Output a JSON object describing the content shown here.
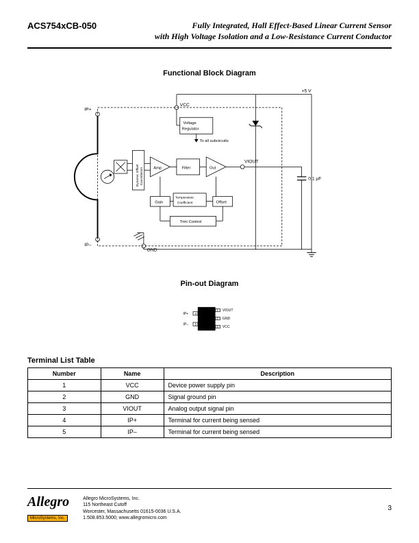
{
  "header": {
    "part_number": "ACS754xCB-050",
    "title_line1": "Fully Integrated, Hall Effect-Based Linear Current Sensor",
    "title_line2": "with High Voltage Isolation and a Low-Resistance Current Conductor"
  },
  "sections": {
    "block_diagram_title": "Functional Block Diagram",
    "pinout_title": "Pin-out Diagram",
    "table_title": "Terminal List Table"
  },
  "block_diagram": {
    "labels": {
      "ip_plus": "IP+",
      "ip_minus": "IP–",
      "vcc": "VCC",
      "gnd": "GND",
      "supply": "+5 V",
      "viout": "VIOUT",
      "cap": "0.1 μF",
      "voltage_regulator": "Voltage Regulator",
      "to_subcircuits": "To all subcircuits",
      "dynamic_offset": "Dynamic Offset Cancellation",
      "amp": "Amp",
      "filter": "Filter",
      "out": "Out",
      "gain": "Gain",
      "temp_coef": "Temperature Coefficient",
      "offset": "Offset",
      "trim_control": "Trim Control"
    }
  },
  "pinout": {
    "pins": {
      "ip_plus": "IP+",
      "ip_minus": "IP–",
      "viout": "VIOUT",
      "gnd": "GND",
      "vcc": "VCC",
      "pin4": "4",
      "pin5": "5",
      "pin1": "1",
      "pin2": "2",
      "pin3": "3"
    }
  },
  "table": {
    "headers": {
      "number": "Number",
      "name": "Name",
      "description": "Description"
    },
    "rows": [
      {
        "number": "1",
        "name": "VCC",
        "description": "Device power supply pin"
      },
      {
        "number": "2",
        "name": "GND",
        "description": "Signal ground pin"
      },
      {
        "number": "3",
        "name": "VIOUT",
        "description": "Analog output signal pin"
      },
      {
        "number": "4",
        "name": "IP+",
        "description": "Terminal for current being sensed"
      },
      {
        "number": "5",
        "name": "IP–",
        "description": "Terminal for current being sensed"
      }
    ]
  },
  "footer": {
    "logo": "Allegro",
    "logo_sub": "MicroSystems, Inc.",
    "company": "Allegro MicroSystems, Inc.",
    "address1": "115 Northeast Cutoff",
    "address2": "Worcester, Massachusetts 01615-0036 U.S.A.",
    "phone": "1.508.853.5000; www.allegromicro.com",
    "page": "3"
  }
}
